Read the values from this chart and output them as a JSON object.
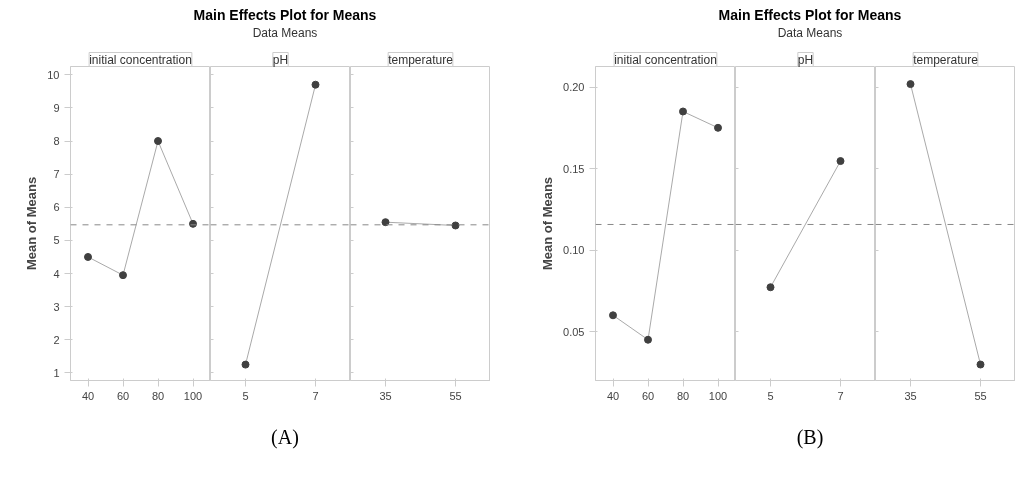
{
  "chart_data": [
    {
      "type": "line",
      "title": "initial concentration",
      "annotations": [
        "Main Effects Plot for Means",
        "Data Means",
        "(A)"
      ],
      "ylabel": "Mean of Means",
      "categories": [
        "40",
        "60",
        "80",
        "100"
      ],
      "series": [
        {
          "color": "#404040",
          "values": [
            4.5,
            3.95,
            8.0,
            5.5
          ]
        }
      ],
      "ylim": [
        0.77,
        10.25
      ],
      "yticks": [
        1,
        2,
        3,
        4,
        5,
        6,
        7,
        8,
        9,
        10
      ],
      "ref_lines": [
        {
          "axis": "y",
          "value": 5.47,
          "color": "#888888",
          "line_style": "dashed"
        }
      ],
      "marker": "circle"
    },
    {
      "type": "line",
      "title": "pH",
      "categories": [
        "5",
        "7"
      ],
      "series": [
        {
          "color": "#404040",
          "values": [
            1.25,
            9.7
          ]
        }
      ],
      "ylim": [
        0.77,
        10.25
      ],
      "yticks": [
        1,
        2,
        3,
        4,
        5,
        6,
        7,
        8,
        9,
        10
      ],
      "ref_lines": [
        {
          "axis": "y",
          "value": 5.47,
          "color": "#888888",
          "line_style": "dashed"
        }
      ],
      "marker": "circle",
      "tick_labels": "x"
    },
    {
      "type": "line",
      "title": "temperature",
      "categories": [
        "35",
        "55"
      ],
      "series": [
        {
          "color": "#404040",
          "values": [
            5.55,
            5.45
          ]
        }
      ],
      "ylim": [
        0.77,
        10.25
      ],
      "yticks": [
        1,
        2,
        3,
        4,
        5,
        6,
        7,
        8,
        9,
        10
      ],
      "ref_lines": [
        {
          "axis": "y",
          "value": 5.47,
          "color": "#888888",
          "line_style": "dashed"
        }
      ],
      "marker": "circle",
      "tick_labels": "x"
    },
    {
      "type": "line",
      "title": "initial concentration",
      "annotations": [
        "Main Effects Plot for Means",
        "Data Means",
        "(B)"
      ],
      "ylabel": "Mean of Means",
      "categories": [
        "40",
        "60",
        "80",
        "100"
      ],
      "series": [
        {
          "color": "#404040",
          "values": [
            0.06,
            0.045,
            0.185,
            0.175
          ]
        }
      ],
      "ylim": [
        0.02,
        0.2126
      ],
      "yticks": [
        {
          "value": 0.05,
          "label": "0.05"
        },
        {
          "value": 0.1,
          "label": "0.10"
        },
        {
          "value": 0.15,
          "label": "0.15"
        },
        {
          "value": 0.2,
          "label": "0.20"
        }
      ],
      "ref_lines": [
        {
          "axis": "y",
          "value": 0.1157,
          "color": "#888888",
          "line_style": "dashed"
        }
      ],
      "marker": "circle"
    },
    {
      "type": "line",
      "title": "pH",
      "categories": [
        "5",
        "7"
      ],
      "series": [
        {
          "color": "#404040",
          "values": [
            0.0772,
            0.1546
          ]
        }
      ],
      "ylim": [
        0.02,
        0.2126
      ],
      "yticks": [
        0.05,
        0.1,
        0.15,
        0.2
      ],
      "ref_lines": [
        {
          "axis": "y",
          "value": 0.1157,
          "color": "#888888",
          "line_style": "dashed"
        }
      ],
      "marker": "circle",
      "tick_labels": "x"
    },
    {
      "type": "line",
      "title": "temperature",
      "categories": [
        "35",
        "55"
      ],
      "series": [
        {
          "color": "#404040",
          "values": [
            0.2018,
            0.0298
          ]
        }
      ],
      "ylim": [
        0.02,
        0.2126
      ],
      "yticks": [
        0.05,
        0.1,
        0.15,
        0.2
      ],
      "ref_lines": [
        {
          "axis": "y",
          "value": 0.1157,
          "color": "#888888",
          "line_style": "dashed"
        }
      ],
      "marker": "circle",
      "tick_labels": "x"
    }
  ]
}
